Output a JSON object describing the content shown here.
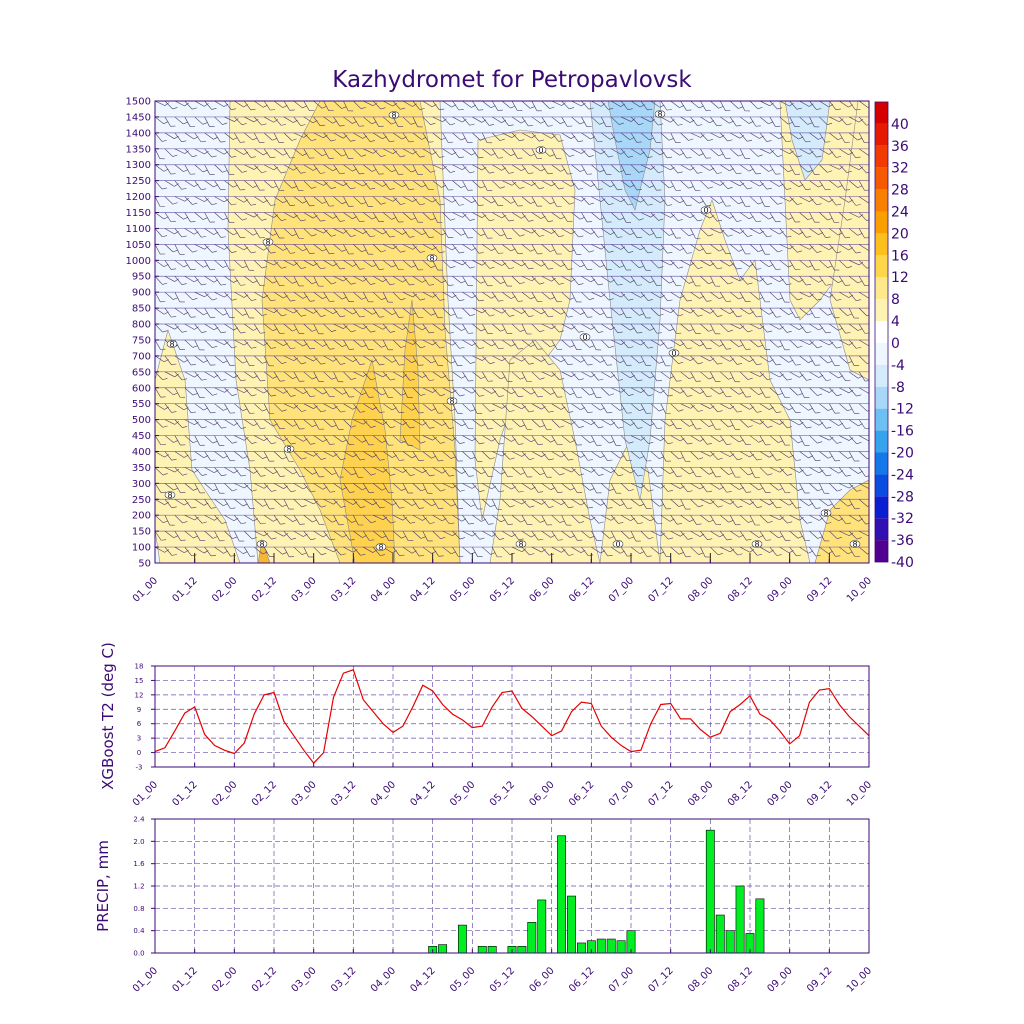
{
  "title": "Kazhydromet for Petropavlovsk",
  "colors": {
    "axis": "#3b0a75",
    "grid": "#6a4cb0",
    "line_t2": "#e60000",
    "bar_precip": "#00ee22",
    "bar_edge": "#000000",
    "fill_warm_1": "#fff3b4",
    "fill_warm_2": "#ffe37a",
    "fill_warm_3": "#fed24f",
    "fill_warm_4": "#f7b638",
    "fill_cold_1": "#eef6ff",
    "fill_cold_2": "#d4ebfb",
    "fill_cold_3": "#a9d7f7"
  },
  "time_ticks": [
    "01_00",
    "01_12",
    "02_00",
    "02_12",
    "03_00",
    "03_12",
    "04_00",
    "04_12",
    "05_00",
    "05_12",
    "06_00",
    "06_12",
    "07_00",
    "07_12",
    "08_00",
    "08_12",
    "09_00",
    "09_12",
    "10_00"
  ],
  "cross_section": {
    "pressure_levels": [
      "1500",
      "1450",
      "1400",
      "1350",
      "1300",
      "1250",
      "1200",
      "1150",
      "1100",
      "1050",
      "1000",
      "950",
      "900",
      "850",
      "800",
      "750",
      "700",
      "650",
      "600",
      "550",
      "500",
      "450",
      "400",
      "350",
      "300",
      "250",
      "200",
      "150",
      "100",
      "50"
    ],
    "contour_labels": [
      "8",
      "8",
      "8",
      "8",
      "8",
      "8",
      "8",
      "8",
      "8",
      "8",
      "8",
      "8",
      "8",
      "8",
      "0",
      "0",
      "0",
      "0",
      "0"
    ],
    "colorbar": {
      "labels": [
        "40",
        "36",
        "32",
        "28",
        "24",
        "20",
        "16",
        "12",
        "8",
        "4",
        "0",
        "-4",
        "-8",
        "-12",
        "-16",
        "-20",
        "-24",
        "-28",
        "-32",
        "-36",
        "-40"
      ],
      "colors": [
        "#d40000",
        "#e61a00",
        "#f03c00",
        "#f55a00",
        "#f88000",
        "#f9a000",
        "#fbbf1e",
        "#fdd64a",
        "#fee98c",
        "#fff3b4",
        "#ffffff",
        "#eef6ff",
        "#d4ebfb",
        "#a9d7f7",
        "#6cc0f2",
        "#36a3ed",
        "#1478e8",
        "#0a4be0",
        "#0a1fd0",
        "#3010b0",
        "#520090"
      ]
    }
  },
  "chart_data": [
    {
      "type": "line",
      "title": "",
      "ylabel": "XGBoost T2 (deg C)",
      "xlabel": "",
      "x_ticks": [
        "01_00",
        "01_12",
        "02_00",
        "02_12",
        "03_00",
        "03_12",
        "04_00",
        "04_12",
        "05_00",
        "05_12",
        "06_00",
        "06_12",
        "07_00",
        "07_12",
        "08_00",
        "08_12",
        "09_00",
        "09_12",
        "10_00"
      ],
      "y_ticks": [
        "18",
        "15",
        "12",
        "9",
        "6",
        "3",
        "0",
        "-3"
      ],
      "ylim": [
        -3,
        18
      ],
      "grid": true,
      "series": [
        {
          "name": "T2",
          "x_step_hours": 3,
          "values": [
            0.2,
            1.0,
            4.5,
            8.2,
            9.5,
            3.8,
            1.5,
            0.5,
            -0.2,
            2.0,
            8.0,
            12.0,
            12.5,
            6.5,
            3.5,
            0.5,
            -2.2,
            0.0,
            11.5,
            16.5,
            17.2,
            11.0,
            8.5,
            6.0,
            4.2,
            5.5,
            9.5,
            14.0,
            12.8,
            10.0,
            8.0,
            6.8,
            5.2,
            5.5,
            9.5,
            12.5,
            12.8,
            9.2,
            7.5,
            5.5,
            3.5,
            4.5,
            8.5,
            10.5,
            10.2,
            5.5,
            3.2,
            1.5,
            0.2,
            0.5,
            6.0,
            10.0,
            10.2,
            7.0,
            7.0,
            4.8,
            3.2,
            4.0,
            8.5,
            10.0,
            11.8,
            8.0,
            6.8,
            4.5,
            1.8,
            3.5,
            10.5,
            13.0,
            13.3,
            10.0,
            7.5,
            5.5,
            3.5
          ]
        }
      ]
    },
    {
      "type": "bar",
      "title": "",
      "ylabel": "PRECIP, mm",
      "xlabel": "",
      "x_ticks": [
        "01_00",
        "01_12",
        "02_00",
        "02_12",
        "03_00",
        "03_12",
        "04_00",
        "04_12",
        "05_00",
        "05_12",
        "06_00",
        "06_12",
        "07_00",
        "07_12",
        "08_00",
        "08_12",
        "09_00",
        "09_12",
        "10_00"
      ],
      "y_ticks": [
        "2.4",
        "2.0",
        "1.6",
        "1.2",
        "0.8",
        "0.4",
        "0.0"
      ],
      "ylim": [
        0,
        2.4
      ],
      "grid": true,
      "bar_width_hours": 2.5,
      "bars": [
        {
          "hour": 84,
          "value": 0.12
        },
        {
          "hour": 87,
          "value": 0.15
        },
        {
          "hour": 93,
          "value": 0.5
        },
        {
          "hour": 99,
          "value": 0.12
        },
        {
          "hour": 102,
          "value": 0.12
        },
        {
          "hour": 108,
          "value": 0.12
        },
        {
          "hour": 111,
          "value": 0.12
        },
        {
          "hour": 114,
          "value": 0.55
        },
        {
          "hour": 117,
          "value": 0.95
        },
        {
          "hour": 123,
          "value": 2.1
        },
        {
          "hour": 126,
          "value": 1.02
        },
        {
          "hour": 129,
          "value": 0.18
        },
        {
          "hour": 132,
          "value": 0.22
        },
        {
          "hour": 135,
          "value": 0.25
        },
        {
          "hour": 138,
          "value": 0.25
        },
        {
          "hour": 141,
          "value": 0.22
        },
        {
          "hour": 144,
          "value": 0.4
        },
        {
          "hour": 168,
          "value": 2.2
        },
        {
          "hour": 171,
          "value": 0.68
        },
        {
          "hour": 174,
          "value": 0.4
        },
        {
          "hour": 177,
          "value": 1.2
        },
        {
          "hour": 180,
          "value": 0.35
        },
        {
          "hour": 183,
          "value": 0.97
        }
      ]
    }
  ]
}
